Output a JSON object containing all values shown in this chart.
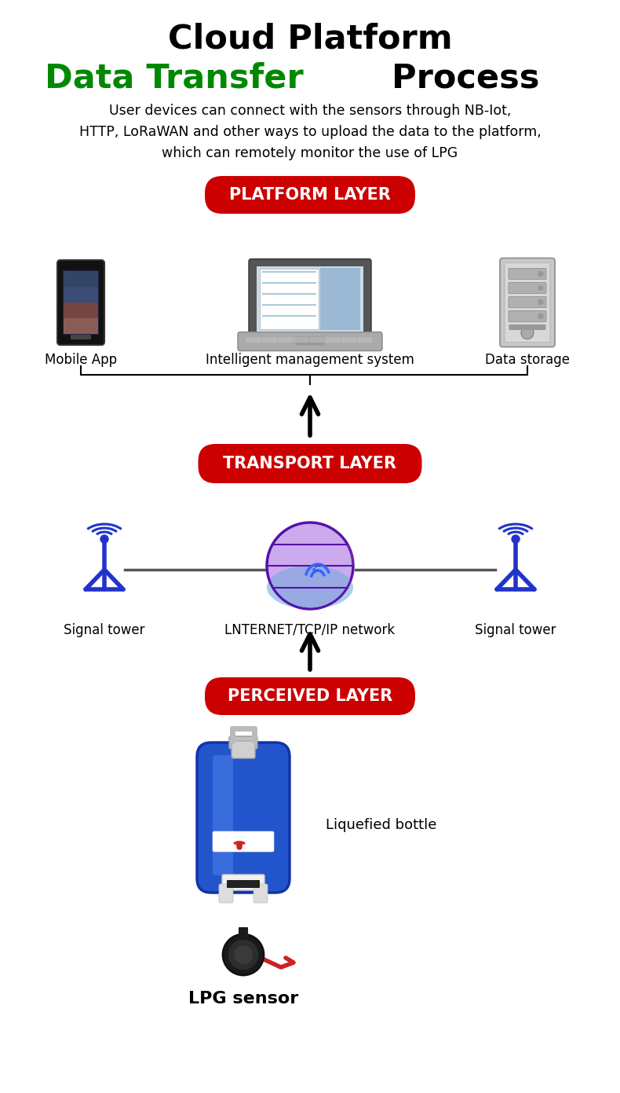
{
  "title_line1": "Cloud Platform",
  "title_line2_green": "Data Transfer",
  "title_line2_black": " Process",
  "subtitle": "User devices can connect with the sensors through NB-Iot,\nHTTP, LoRaWAN and other ways to upload the data to the platform,\nwhich can remotely monitor the use of LPG",
  "platform_label": "PLATFORM LAYER",
  "transport_label": "TRANSPORT LAYER",
  "perceived_label": "PERCEIVED LAYER",
  "mobile_label": "Mobile App",
  "laptop_label": "Intelligent management system",
  "storage_label": "Data storage",
  "signal1_label": "Signal tower",
  "network_label": "LNTERNET/TCP/IP network",
  "signal2_label": "Signal tower",
  "bottle_label": "Liquefied bottle",
  "sensor_label": "LPG sensor",
  "bg_color": "#ffffff",
  "red_btn_color": "#cc0000",
  "green_color": "#008800",
  "black_color": "#000000",
  "white_color": "#ffffff",
  "blue_signal": "#2244cc",
  "globe_purple": "#8833bb",
  "globe_blue": "#3366dd"
}
